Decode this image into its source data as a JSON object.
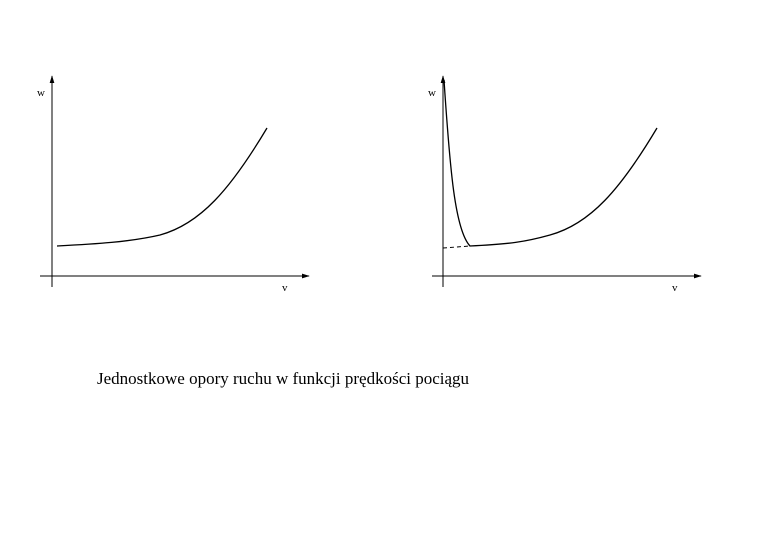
{
  "plots": [
    {
      "y_label": "w",
      "x_label": "v"
    },
    {
      "y_label": "w",
      "x_label": "v"
    }
  ],
  "caption": "Jednostkowe opory ruchu w funkcji prędkości pociągu"
}
